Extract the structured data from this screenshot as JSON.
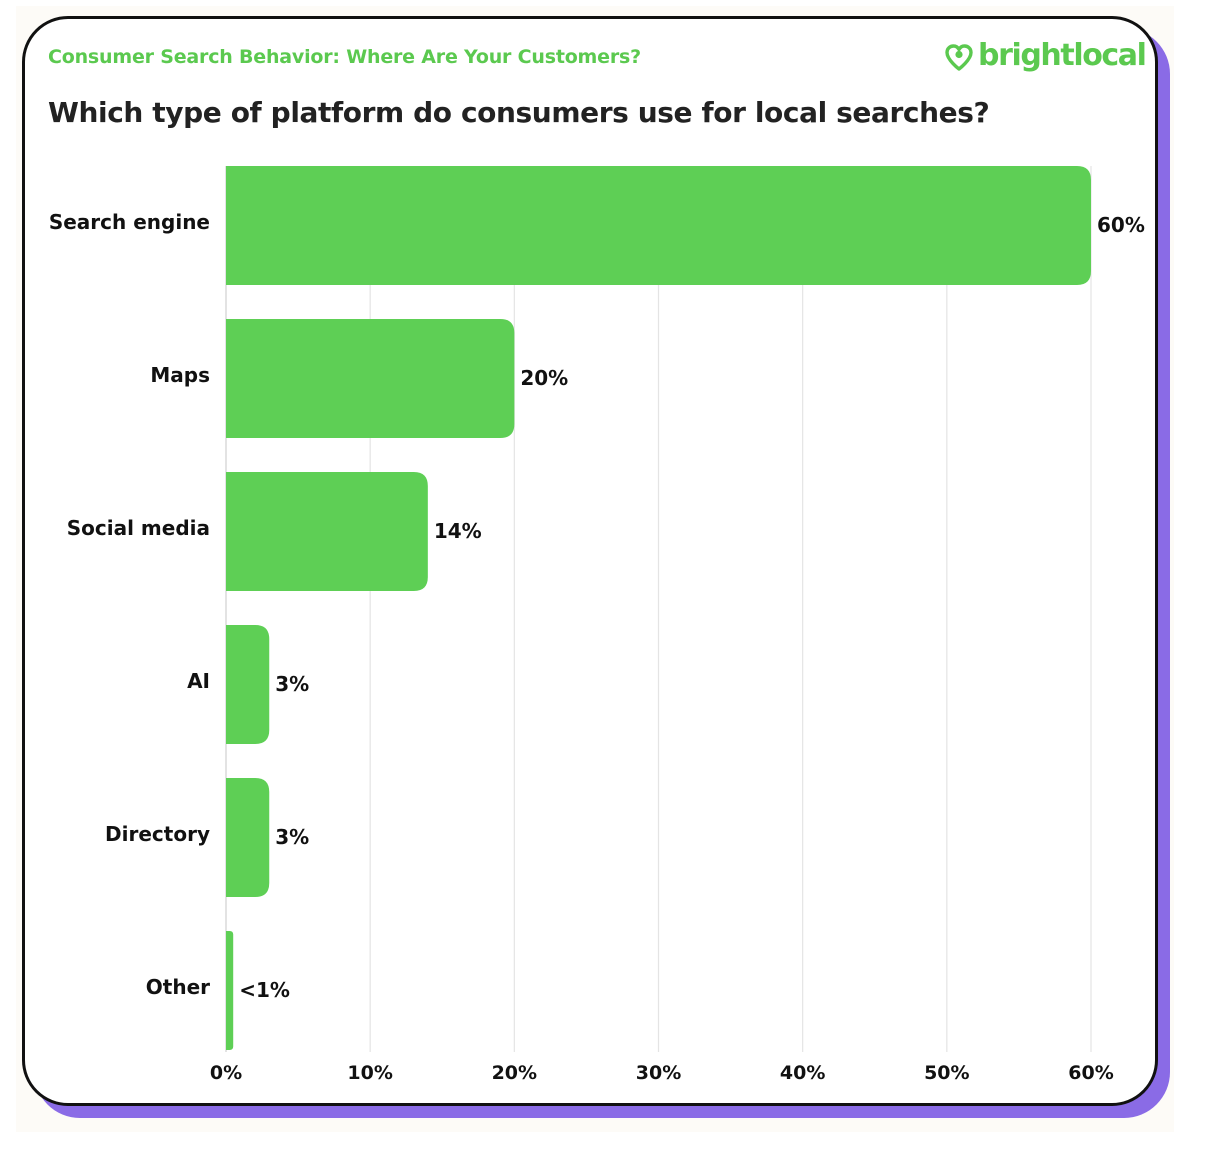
{
  "header": {
    "eyebrow": "Consumer Search Behavior: Where Are Your Customers?",
    "brand": "brightlocal"
  },
  "colors": {
    "bar": "#5ecf55",
    "brand": "#5bc94f",
    "grid": "#e4e4e4",
    "shadow": "#8a6be6"
  },
  "chart_data": {
    "type": "bar",
    "orientation": "horizontal",
    "title": "Which type of platform do consumers use for local searches?",
    "categories": [
      "Search engine",
      "Maps",
      "Social media",
      "AI",
      "Directory",
      "Other"
    ],
    "values": [
      60,
      20,
      14,
      3,
      3,
      0.5
    ],
    "value_labels": [
      "60%",
      "20%",
      "14%",
      "3%",
      "3%",
      "<1%"
    ],
    "xlim": [
      0,
      60
    ],
    "xticks": [
      0,
      10,
      20,
      30,
      40,
      50,
      60
    ],
    "xtick_labels": [
      "0%",
      "10%",
      "20%",
      "30%",
      "40%",
      "50%",
      "60%"
    ],
    "grid": "vertical"
  }
}
